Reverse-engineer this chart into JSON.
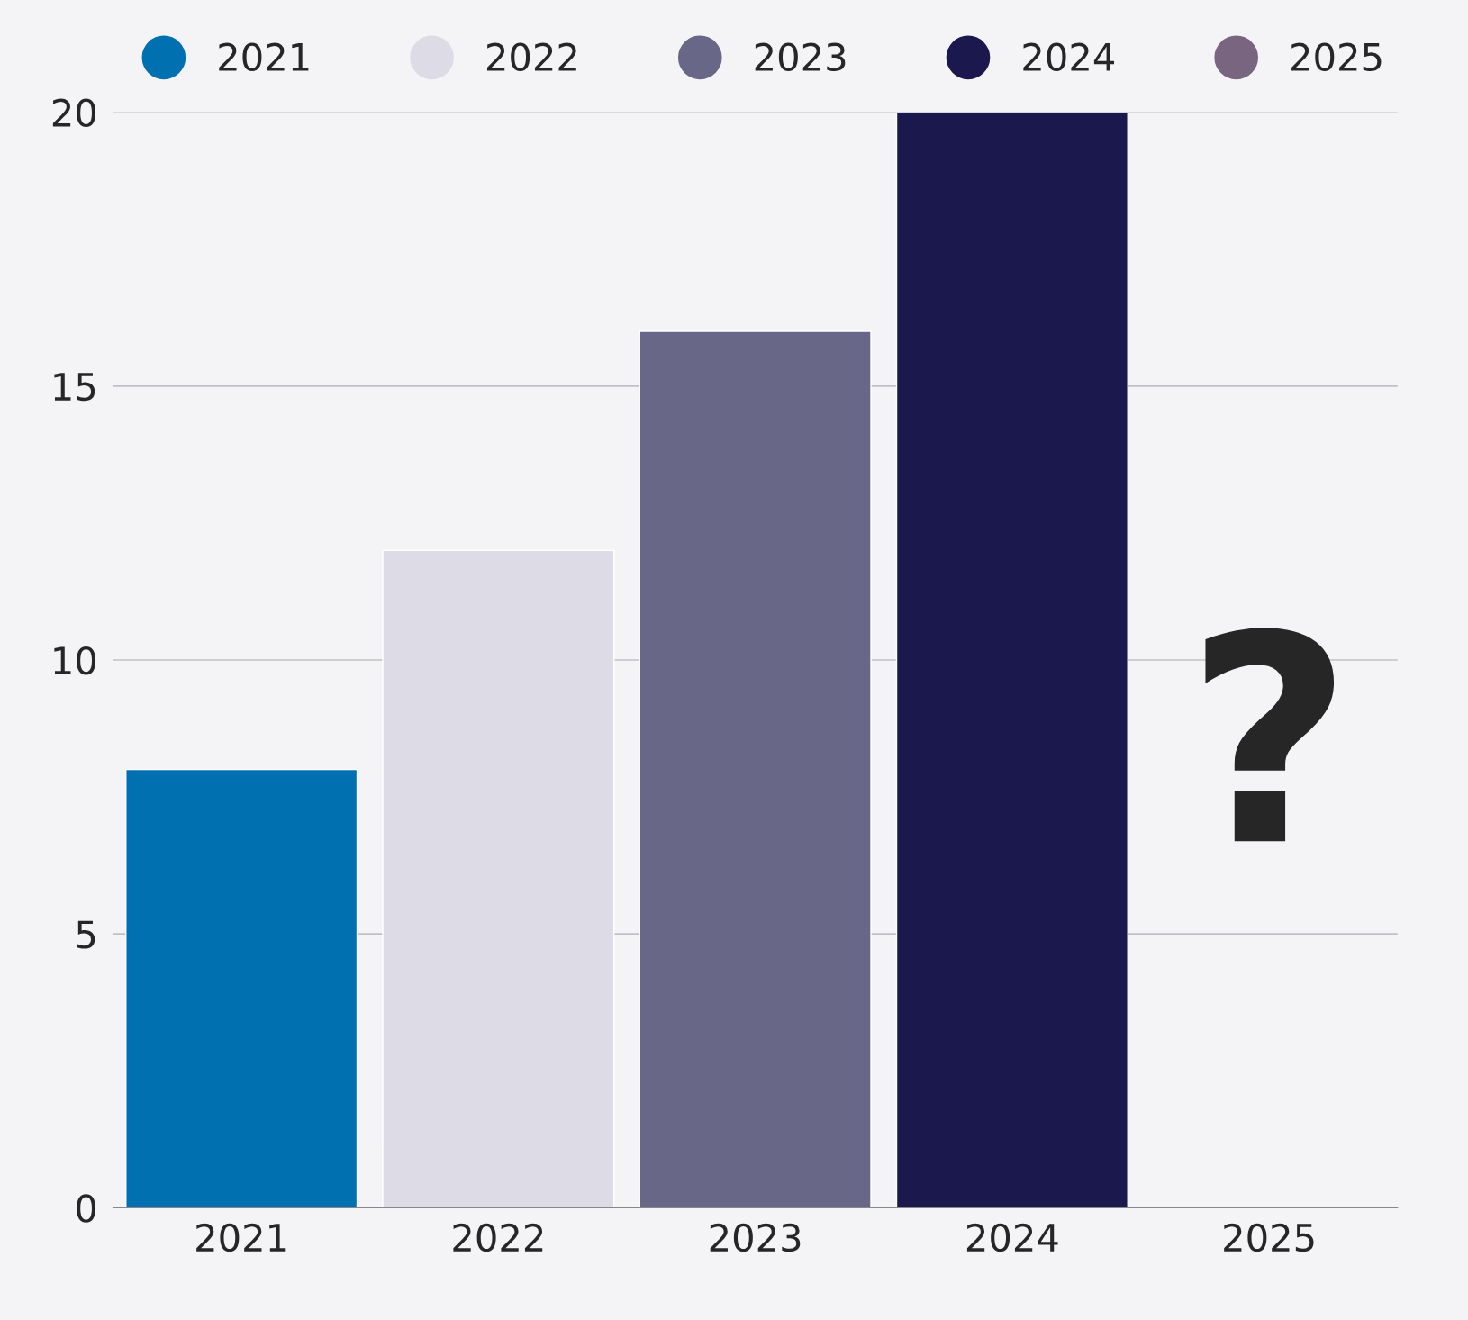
{
  "chart_data": {
    "type": "bar",
    "categories": [
      "2021",
      "2022",
      "2023",
      "2024",
      "2025"
    ],
    "series": [
      {
        "name": "2021",
        "color": "#0070b0",
        "values": [
          8,
          null,
          null,
          null,
          null
        ]
      },
      {
        "name": "2022",
        "color": "#dddce6",
        "values": [
          null,
          12,
          null,
          null,
          null
        ]
      },
      {
        "name": "2023",
        "color": "#696788",
        "values": [
          null,
          null,
          16,
          null,
          null
        ]
      },
      {
        "name": "2024",
        "color": "#1b184e",
        "values": [
          null,
          null,
          null,
          20,
          null
        ]
      },
      {
        "name": "2025",
        "color": "#7a6580",
        "values": [
          null,
          null,
          null,
          null,
          null
        ]
      }
    ],
    "ylim": [
      0,
      20
    ],
    "yticks": [
      0,
      5,
      10,
      15,
      20
    ],
    "grid": "y",
    "legend": "top",
    "annotations": [
      "?"
    ]
  }
}
